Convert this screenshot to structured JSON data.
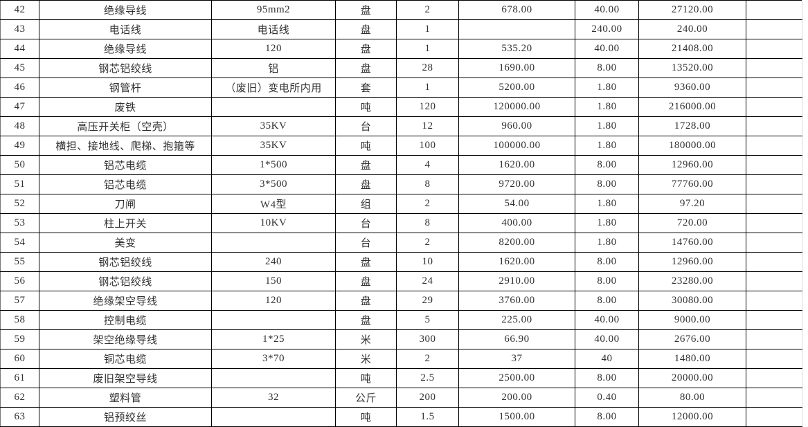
{
  "colors": {
    "border": "#000000",
    "text": "#303030",
    "background": "#ffffff",
    "faint_edge_line": "#d9d9d9"
  },
  "table": {
    "rows": [
      [
        "42",
        "绝缘导线",
        "95mm2",
        "盘",
        "2",
        "678.00",
        "40.00",
        "27120.00",
        ""
      ],
      [
        "43",
        "电话线",
        "电话线",
        "盘",
        "1",
        "",
        "240.00",
        "240.00",
        ""
      ],
      [
        "44",
        "绝缘导线",
        "120",
        "盘",
        "1",
        "535.20",
        "40.00",
        "21408.00",
        ""
      ],
      [
        "45",
        "钢芯铝绞线",
        "铝",
        "盘",
        "28",
        "1690.00",
        "8.00",
        "13520.00",
        ""
      ],
      [
        "46",
        "钢管杆",
        "（废旧）变电所内用",
        "套",
        "1",
        "5200.00",
        "1.80",
        "9360.00",
        ""
      ],
      [
        "47",
        "废铁",
        "",
        "吨",
        "120",
        "120000.00",
        "1.80",
        "216000.00",
        ""
      ],
      [
        "48",
        "高压开关柜（空壳）",
        "35KV",
        "台",
        "12",
        "960.00",
        "1.80",
        "1728.00",
        ""
      ],
      [
        "49",
        "横担、接地线、爬梯、抱箍等",
        "35KV",
        "吨",
        "100",
        "100000.00",
        "1.80",
        "180000.00",
        ""
      ],
      [
        "50",
        "铝芯电缆",
        "1*500",
        "盘",
        "4",
        "1620.00",
        "8.00",
        "12960.00",
        ""
      ],
      [
        "51",
        "铝芯电缆",
        "3*500",
        "盘",
        "8",
        "9720.00",
        "8.00",
        "77760.00",
        ""
      ],
      [
        "52",
        "刀闸",
        "W4型",
        "组",
        "2",
        "54.00",
        "1.80",
        "97.20",
        ""
      ],
      [
        "53",
        "柱上开关",
        "10KV",
        "台",
        "8",
        "400.00",
        "1.80",
        "720.00",
        ""
      ],
      [
        "54",
        "美变",
        "",
        "台",
        "2",
        "8200.00",
        "1.80",
        "14760.00",
        ""
      ],
      [
        "55",
        "钢芯铝绞线",
        "240",
        "盘",
        "10",
        "1620.00",
        "8.00",
        "12960.00",
        ""
      ],
      [
        "56",
        "钢芯铝绞线",
        "150",
        "盘",
        "24",
        "2910.00",
        "8.00",
        "23280.00",
        ""
      ],
      [
        "57",
        "绝缘架空导线",
        "120",
        "盘",
        "29",
        "3760.00",
        "8.00",
        "30080.00",
        ""
      ],
      [
        "58",
        "控制电缆",
        "",
        "盘",
        "5",
        "225.00",
        "40.00",
        "9000.00",
        ""
      ],
      [
        "59",
        "架空绝缘导线",
        "1*25",
        "米",
        "300",
        "66.90",
        "40.00",
        "2676.00",
        ""
      ],
      [
        "60",
        "铜芯电缆",
        "3*70",
        "米",
        "2",
        "37",
        "40",
        "1480.00",
        ""
      ],
      [
        "61",
        "废旧架空导线",
        "",
        "吨",
        "2.5",
        "2500.00",
        "8.00",
        "20000.00",
        ""
      ],
      [
        "62",
        "塑料管",
        "32",
        "公斤",
        "200",
        "200.00",
        "0.40",
        "80.00",
        ""
      ],
      [
        "63",
        "铝预绞丝",
        "",
        "吨",
        "1.5",
        "1500.00",
        "8.00",
        "12000.00",
        ""
      ]
    ]
  }
}
